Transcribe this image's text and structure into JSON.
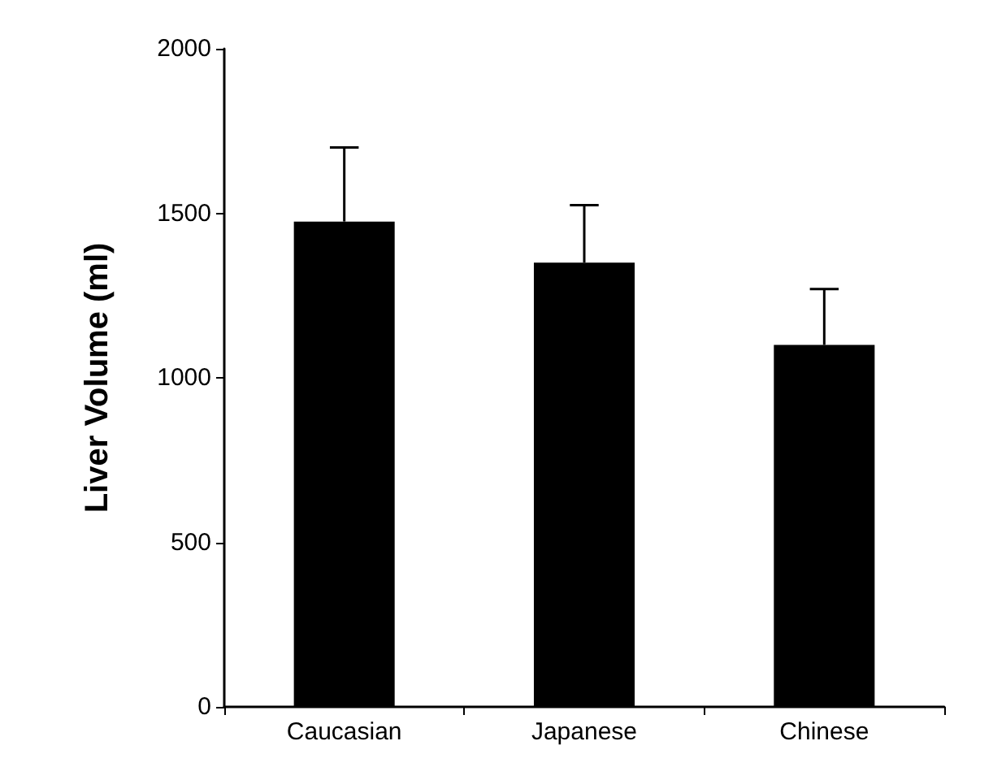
{
  "chart_data": {
    "type": "bar",
    "ylabel": "Liver Volume (ml)",
    "categories": [
      "Caucasian",
      "Japanese",
      "Chinese"
    ],
    "values": [
      1475,
      1350,
      1100
    ],
    "errors": [
      [
        1475,
        1700
      ],
      [
        1350,
        1525
      ],
      [
        1100,
        1270
      ]
    ],
    "color": "#000000",
    "ylim": [
      0,
      2000
    ],
    "yticks": [
      0,
      500,
      1000,
      1500,
      2000
    ],
    "grid": false
  }
}
